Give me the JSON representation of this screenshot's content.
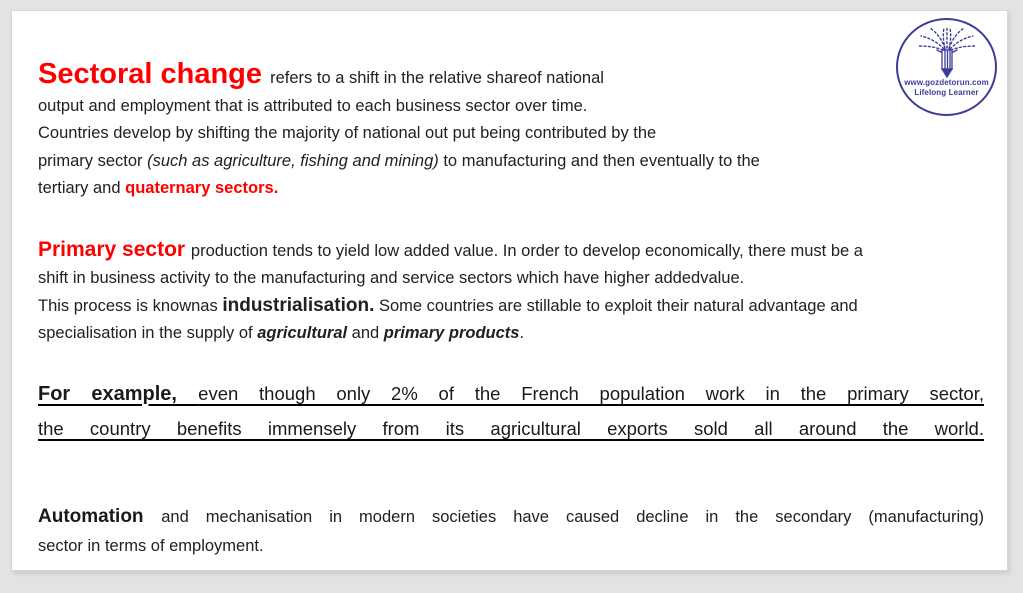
{
  "colors": {
    "accent_red": "#fe0000",
    "text": "#212121",
    "logo_navy": "#3c3c9b",
    "page_bg": "#e3e3e3",
    "slide_bg": "#ffffff"
  },
  "logo": {
    "url_text": "www.gozdetorun.com",
    "tagline": "Lifelong Learner",
    "icon": "pencil-spark-icon"
  },
  "slide": {
    "paragraphs": [
      {
        "name": "intro-paragraph",
        "cls": "p-intro",
        "lines": [
          {
            "runs": [
              {
                "t": "Sectoral change ",
                "s": "title"
              },
              {
                "t": "refers to a shift in the relative shareof national",
                "s": "b"
              }
            ]
          },
          {
            "runs": [
              {
                "t": "output and employment that is attributed to each business sector over time.",
                "s": "b"
              }
            ]
          },
          {
            "runs": [
              {
                "t": "Countries develop by shifting the majority of national out put being contributed by the",
                "s": "b"
              }
            ]
          },
          {
            "runs": [
              {
                "t": "primary sector ",
                "s": "b"
              },
              {
                "t": "(such as agriculture, fishing and mining)",
                "s": "i"
              },
              {
                "t": " to manufacturing and then eventually to the",
                "s": "b"
              }
            ]
          },
          {
            "runs": [
              {
                "t": "tertiary and ",
                "s": "b"
              },
              {
                "t": "quaternary sectors.",
                "s": "rb"
              }
            ]
          }
        ]
      },
      {
        "name": "primary-sector-paragraph",
        "cls": "p-primary",
        "lines": [
          {
            "runs": [
              {
                "t": "Primary sector ",
                "s": "lead"
              },
              {
                "t": "production tends to yield low added value. In order to develop economically, there must be a",
                "s": "b"
              }
            ]
          },
          {
            "runs": [
              {
                "t": "shift in business activity to the manufacturing and service sectors which have higher addedvalue.",
                "s": "b"
              }
            ]
          },
          {
            "runs": [
              {
                "t": "This process is knownas ",
                "s": "b"
              },
              {
                "t": "industrialisation.",
                "s": "big"
              },
              {
                "t": " Some countries are stillable to exploit their natural advantage and",
                "s": "b"
              }
            ]
          },
          {
            "runs": [
              {
                "t": "specialisation in the supply of ",
                "s": "b"
              },
              {
                "t": "agricultural",
                "s": "bi"
              },
              {
                "t": " and ",
                "s": "b"
              },
              {
                "t": "primary products",
                "s": "bi"
              },
              {
                "t": ".",
                "s": "b"
              }
            ]
          }
        ]
      },
      {
        "name": "example-paragraph",
        "cls": "p-example",
        "lines": [
          {
            "just": true,
            "runs": [
              {
                "t": "For example, ",
                "s": "exb"
              },
              {
                "t": "even though only 2% of the French population work in the primary sector,",
                "s": "ex"
              }
            ]
          },
          {
            "just": true,
            "runs": [
              {
                "t": "the country benefits immensely from its agricultural exports sold all around the world.",
                "s": "ex"
              }
            ]
          }
        ]
      },
      {
        "name": "automation-paragraph",
        "cls": "p-auto",
        "lines": [
          {
            "just": true,
            "runs": [
              {
                "t": "Automation ",
                "s": "ab"
              },
              {
                "t": "and mechanisation in modern societies have caused decline in the secondary (manufacturing)",
                "s": "b"
              }
            ]
          },
          {
            "runs": [
              {
                "t": "sector in terms of employment.",
                "s": "b"
              }
            ]
          }
        ]
      }
    ]
  }
}
